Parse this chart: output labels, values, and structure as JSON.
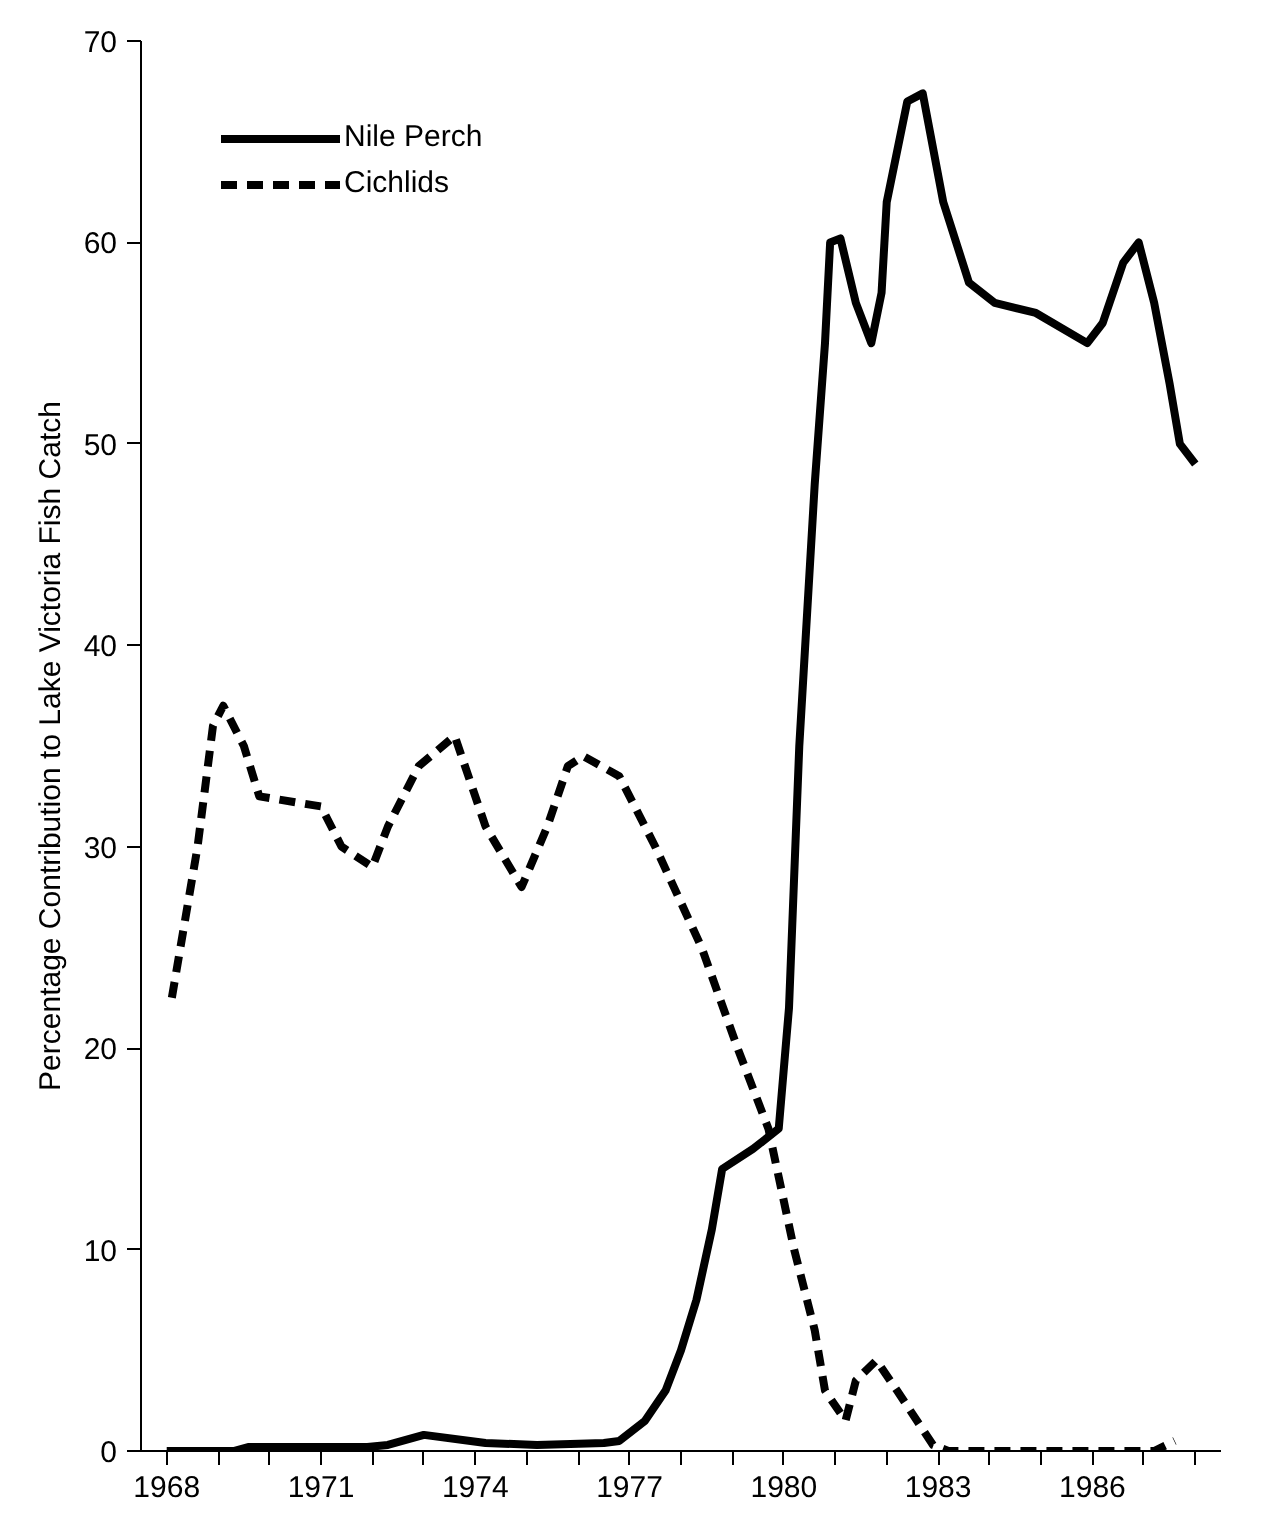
{
  "chart_data": {
    "type": "line",
    "ylabel": "Percentage Contribution to Lake Victoria Fish Catch",
    "xlim": [
      1967.5,
      1988.5
    ],
    "xticks": [
      1968,
      {
        "value": 1969,
        "label": null
      },
      {
        "value": 1970,
        "label": null
      },
      1971,
      {
        "value": 1972,
        "label": null
      },
      {
        "value": 1973,
        "label": null
      },
      1974,
      {
        "value": 1975,
        "label": null
      },
      {
        "value": 1976,
        "label": null
      },
      1977,
      {
        "value": 1978,
        "label": null
      },
      {
        "value": 1979,
        "label": null
      },
      1980,
      {
        "value": 1981,
        "label": null
      },
      {
        "value": 1982,
        "label": null
      },
      1983,
      {
        "value": 1984,
        "label": null
      },
      {
        "value": 1985,
        "label": null
      },
      1986,
      {
        "value": 1987,
        "label": null
      },
      {
        "value": 1988,
        "label": null
      }
    ],
    "ylim": [
      0,
      70
    ],
    "yticks": [
      0,
      10,
      20,
      30,
      40,
      50,
      60,
      70
    ],
    "grid": false,
    "legend": "top left",
    "marker": "none",
    "series": [
      {
        "name": "Nile Perch",
        "color": "#000000",
        "line_style": "solid",
        "x": [
          1968,
          1969.3,
          1969.6,
          1971.9,
          1972.3,
          1973,
          1974.2,
          1975.2,
          1976.5,
          1976.8,
          1977.3,
          1977.7,
          1978,
          1978.3,
          1978.6,
          1978.8,
          1979.4,
          1979.9,
          1980.1,
          1980.3,
          1980.6,
          1980.8,
          1980.9,
          1981.1,
          1981.4,
          1981.7,
          1981.9,
          1982,
          1982.4,
          1982.7,
          1983.1,
          1983.6,
          1984.1,
          1984.9,
          1985.9,
          1986.2,
          1986.6,
          1986.9,
          1987.2,
          1987.5,
          1987.7,
          1988
        ],
        "values": [
          0,
          0,
          0.2,
          0.2,
          0.3,
          0.8,
          0.4,
          0.3,
          0.4,
          0.5,
          1.5,
          3,
          5,
          7.5,
          11,
          14,
          15,
          16,
          22,
          35,
          48,
          55,
          60,
          60.2,
          57,
          55,
          57.5,
          62,
          67,
          67.4,
          62,
          58,
          57,
          56.5,
          55,
          56,
          59,
          60,
          57,
          53,
          50,
          49
        ]
      },
      {
        "name": "Cichlids",
        "color": "#000000",
        "line_style": "dashed",
        "x": [
          1968.1,
          1968.6,
          1968.9,
          1969.1,
          1969.5,
          1969.8,
          1971,
          1971.4,
          1972,
          1972.3,
          1972.9,
          1973.6,
          1974.2,
          1974.9,
          1975.4,
          1975.8,
          1976.1,
          1976.8,
          1977.5,
          1978.4,
          1979.1,
          1979.7,
          1980.2,
          1980.6,
          1980.8,
          1981.2,
          1981.4,
          1981.8,
          1982.2,
          1982.9,
          1983.2,
          1987.2,
          1987.6
        ],
        "values": [
          22.5,
          30,
          36,
          37,
          35,
          32.5,
          32,
          30,
          29,
          31,
          34,
          35.5,
          31,
          28,
          31,
          34,
          34.5,
          33.5,
          30,
          25,
          20,
          16,
          10,
          6,
          3,
          1.5,
          3.5,
          4.5,
          3,
          0.3,
          0,
          0,
          0.5
        ]
      }
    ]
  }
}
